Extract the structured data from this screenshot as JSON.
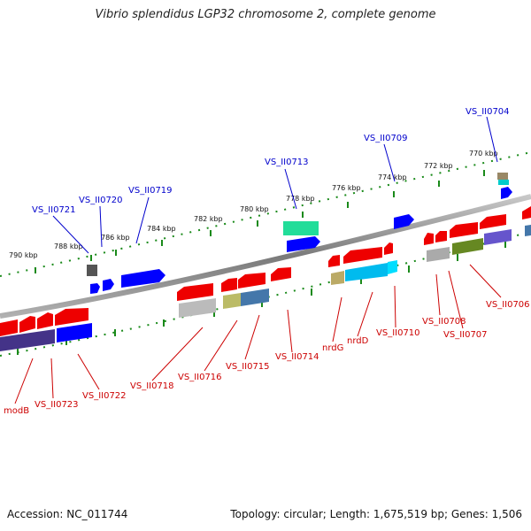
{
  "title": "Vibrio splendidus LGP32 chromosome 2, complete genome",
  "footer": {
    "accession": "Accession: NC_011744",
    "summary": "Topology: circular; Length: 1,675,519 bp; Genes: 1,506"
  },
  "colors": {
    "label_top": "#0000cc",
    "label_bottom": "#cc0000",
    "backbone": "#808080",
    "tick": "#1a8a1a"
  },
  "kbp_ticks": [
    "790 kbp",
    "788 kbp",
    "786 kbp",
    "784 kbp",
    "782 kbp",
    "780 kbp",
    "778 kbp",
    "776 kbp",
    "774 kbp",
    "772 kbp",
    "770 kbp"
  ],
  "labels_top": [
    "VS_II0721",
    "VS_II0720",
    "VS_II0719",
    "VS_II0713",
    "VS_II0709",
    "VS_II0704"
  ],
  "labels_bottom": [
    "modB",
    "VS_II0723",
    "VS_II0722",
    "VS_II0718",
    "VS_II0716",
    "VS_II0715",
    "VS_II0714",
    "nrdG",
    "nrdD",
    "VS_II0710",
    "VS_II0708",
    "VS_II0707",
    "VS_II0706"
  ]
}
